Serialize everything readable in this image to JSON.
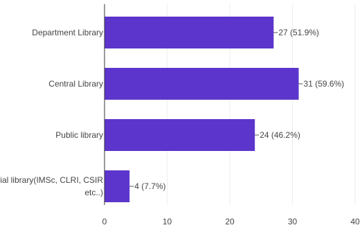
{
  "chart_data": {
    "type": "bar",
    "orientation": "horizontal",
    "categories": [
      [
        "Department Library"
      ],
      [
        "Central Library"
      ],
      [
        "Public library"
      ],
      [
        "Special library(IMSc, CLRI, CSIR",
        "etc..)"
      ]
    ],
    "values": [
      27,
      31,
      24,
      4
    ],
    "data_labels": [
      "27 (51.9%)",
      "31 (59.6%)",
      "24 (46.2%)",
      "4 (7.7%)"
    ],
    "xlim": [
      0,
      40
    ],
    "xticks": [
      0,
      10,
      20,
      30,
      40
    ],
    "grid": true,
    "bar_color": "#5c35cc",
    "title": "",
    "xlabel": "",
    "ylabel": ""
  }
}
